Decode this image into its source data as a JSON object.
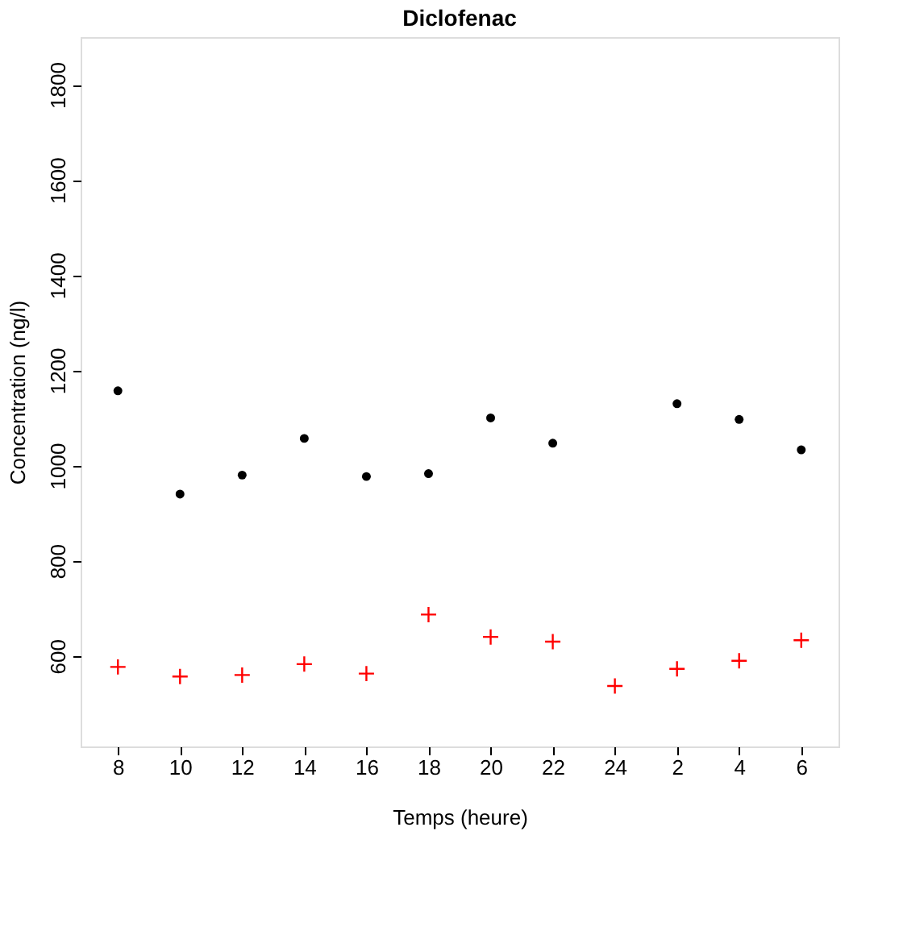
{
  "chart_data": {
    "type": "scatter",
    "title": "Diclofenac",
    "xlabel": "Temps (heure)",
    "ylabel": "Concentration (ng/l)",
    "categories": [
      "8",
      "10",
      "12",
      "14",
      "16",
      "18",
      "20",
      "22",
      "24",
      "2",
      "4",
      "6"
    ],
    "series": [
      {
        "color": "#000000",
        "marker": "circle",
        "values": [
          1157,
          940,
          980,
          1057,
          977,
          983,
          1100,
          1047,
          null,
          1130,
          1097,
          1033
        ]
      },
      {
        "color": "#ff0000",
        "marker": "cross",
        "values": [
          577,
          557,
          560,
          583,
          563,
          687,
          640,
          630,
          537,
          573,
          590,
          633
        ]
      }
    ],
    "ylim": [
      410,
      1900
    ],
    "yticks": [
      600,
      800,
      1000,
      1200,
      1400,
      1600,
      1800
    ],
    "grid": false
  }
}
